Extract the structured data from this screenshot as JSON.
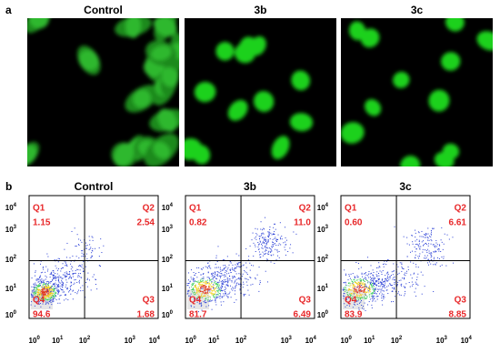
{
  "figure": {
    "panel_a": {
      "label": "a",
      "images": [
        {
          "title": "Control"
        },
        {
          "title": "3b"
        },
        {
          "title": "3c"
        }
      ]
    },
    "panel_b": {
      "label": "b",
      "plots": [
        {
          "title": "Control",
          "quadrants": [
            {
              "name": "Q1",
              "value": "1.15"
            },
            {
              "name": "Q2",
              "value": "2.54"
            },
            {
              "name": "Q3",
              "value": "1.68"
            },
            {
              "name": "Q4",
              "value": "94.6"
            }
          ]
        },
        {
          "title": "3b",
          "quadrants": [
            {
              "name": "Q1",
              "value": "0.82"
            },
            {
              "name": "Q2",
              "value": "11.0"
            },
            {
              "name": "Q3",
              "value": "6.49"
            },
            {
              "name": "Q4",
              "value": "81.7"
            }
          ]
        },
        {
          "title": "3c",
          "quadrants": [
            {
              "name": "Q1",
              "value": "0.60"
            },
            {
              "name": "Q2",
              "value": "6.61"
            },
            {
              "name": "Q3",
              "value": "8.85"
            },
            {
              "name": "Q4",
              "value": "83.9"
            }
          ]
        }
      ]
    },
    "axis": {
      "base": "10",
      "exponents": [
        "0",
        "1",
        "2",
        "3",
        "4"
      ]
    }
  }
}
